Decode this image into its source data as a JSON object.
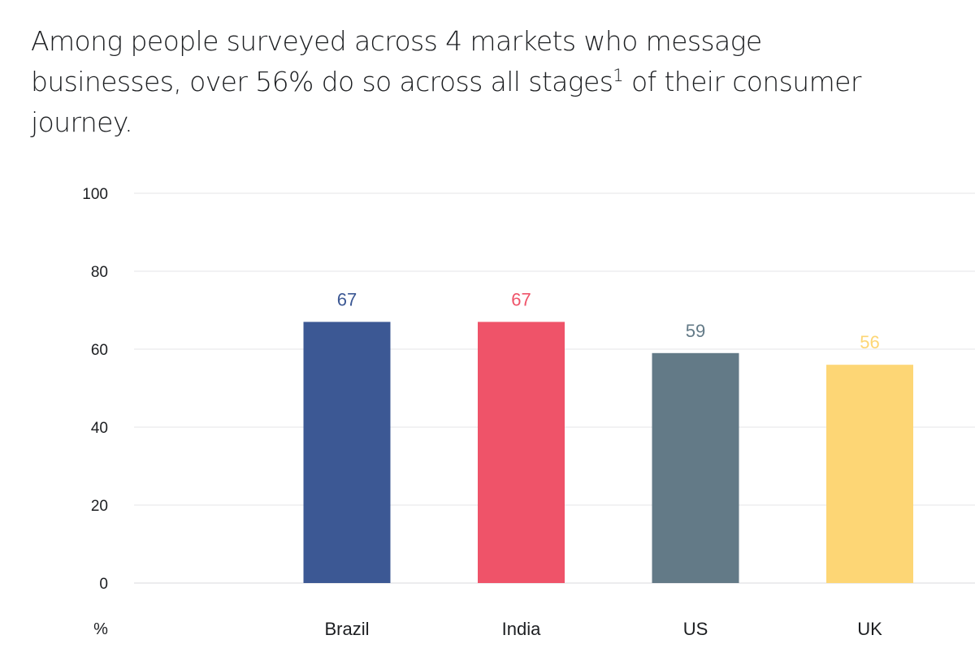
{
  "title": {
    "before": "Among people surveyed across 4 markets who message businesses, over 56% do so across all stages",
    "footnote": "1",
    "after": " of their consumer journey."
  },
  "chart_data": {
    "type": "bar",
    "categories": [
      "Brazil",
      "India",
      "US",
      "UK"
    ],
    "values": [
      67,
      67,
      59,
      56
    ],
    "colors": [
      "#3c5894",
      "#ef5369",
      "#637a87",
      "#fdd675"
    ],
    "value_label_colors": [
      "#3c5894",
      "#ef5369",
      "#637a87",
      "#fdd675"
    ],
    "y_ticks": [
      0,
      20,
      40,
      60,
      80,
      100
    ],
    "ylim": [
      0,
      100
    ],
    "y_unit_label": "%",
    "grid": true,
    "data_labels": true
  }
}
